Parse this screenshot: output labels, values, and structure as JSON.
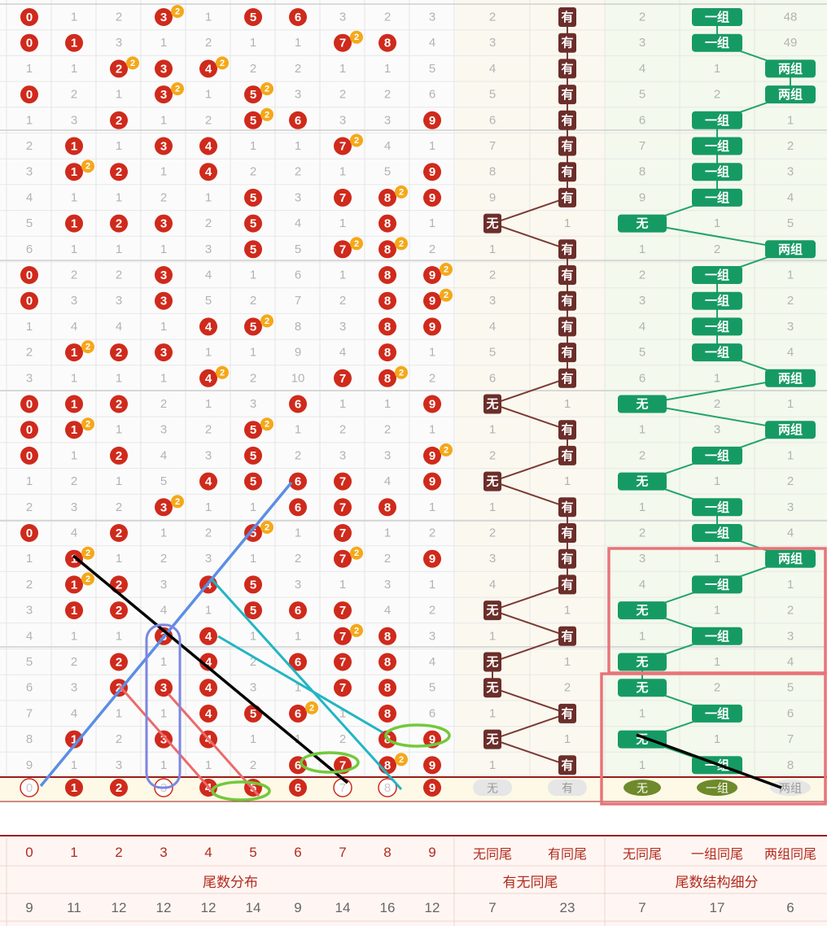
{
  "chart_data": {
    "type": "table",
    "sections": {
      "tail_distribution": "尾数分布",
      "same_tail": "有无同尾",
      "tail_structure": "尾数结构细分"
    },
    "columns": [
      "0",
      "1",
      "2",
      "3",
      "4",
      "5",
      "6",
      "7",
      "8",
      "9",
      "无同尾",
      "有同尾",
      "无同尾",
      "一组同尾",
      "两组同尾"
    ],
    "totals": [
      "9",
      "11",
      "12",
      "12",
      "12",
      "14",
      "9",
      "14",
      "16",
      "12",
      "7",
      "23",
      "7",
      "17",
      "6"
    ],
    "labels": {
      "has": "有",
      "none": "无",
      "one": "一组",
      "two": "两组"
    },
    "digit_rows": [
      [
        "h",
        "1",
        "2",
        "h2",
        "1",
        "h",
        "h",
        "3",
        "2",
        "3"
      ],
      [
        "h",
        "h",
        "3",
        "1",
        "2",
        "1",
        "1",
        "h2",
        "h",
        "4"
      ],
      [
        "1",
        "1",
        "h2",
        "h",
        "h2",
        "2",
        "2",
        "1",
        "1",
        "5"
      ],
      [
        "h",
        "2",
        "1",
        "h2",
        "1",
        "h2",
        "3",
        "2",
        "2",
        "6"
      ],
      [
        "1",
        "3",
        "h",
        "1",
        "2",
        "h2",
        "h",
        "3",
        "3",
        "h"
      ],
      [
        "2",
        "h",
        "1",
        "h",
        "h",
        "1",
        "1",
        "h2",
        "4",
        "1"
      ],
      [
        "3",
        "h2",
        "h",
        "1",
        "h",
        "2",
        "2",
        "1",
        "5",
        "h"
      ],
      [
        "4",
        "1",
        "1",
        "2",
        "1",
        "h",
        "3",
        "h",
        "h2",
        "h"
      ],
      [
        "5",
        "h",
        "h",
        "h",
        "2",
        "h",
        "4",
        "1",
        "h",
        "1"
      ],
      [
        "6",
        "1",
        "1",
        "1",
        "3",
        "h",
        "5",
        "h2",
        "h2",
        "2"
      ],
      [
        "h",
        "2",
        "2",
        "h",
        "4",
        "1",
        "6",
        "1",
        "h",
        "h2"
      ],
      [
        "h",
        "3",
        "3",
        "h",
        "5",
        "2",
        "7",
        "2",
        "h",
        "h2"
      ],
      [
        "1",
        "4",
        "4",
        "1",
        "h",
        "h2",
        "8",
        "3",
        "h",
        "h"
      ],
      [
        "2",
        "h2",
        "h",
        "h",
        "1",
        "1",
        "9",
        "4",
        "h",
        "1"
      ],
      [
        "3",
        "1",
        "1",
        "1",
        "h2",
        "2",
        "10",
        "h",
        "h2",
        "2"
      ],
      [
        "h",
        "h",
        "h",
        "2",
        "1",
        "3",
        "h",
        "1",
        "1",
        "h"
      ],
      [
        "h",
        "h2",
        "1",
        "3",
        "2",
        "h2",
        "1",
        "2",
        "2",
        "1"
      ],
      [
        "h",
        "1",
        "h",
        "4",
        "3",
        "h",
        "2",
        "3",
        "3",
        "h2"
      ],
      [
        "1",
        "2",
        "1",
        "5",
        "h",
        "h",
        "h",
        "h",
        "4",
        "h"
      ],
      [
        "2",
        "3",
        "2",
        "h2",
        "1",
        "1",
        "h",
        "h",
        "h",
        "1"
      ],
      [
        "h",
        "4",
        "h",
        "1",
        "2",
        "h2",
        "1",
        "h",
        "1",
        "2"
      ],
      [
        "1",
        "h2",
        "1",
        "2",
        "3",
        "1",
        "2",
        "h2",
        "2",
        "h"
      ],
      [
        "2",
        "h2",
        "h",
        "3",
        "h",
        "h",
        "3",
        "1",
        "3",
        "1"
      ],
      [
        "3",
        "h",
        "h",
        "4",
        "1",
        "h",
        "h",
        "h",
        "4",
        "2"
      ],
      [
        "4",
        "1",
        "1",
        "h",
        "h",
        "1",
        "1",
        "h2",
        "h",
        "3"
      ],
      [
        "5",
        "2",
        "h",
        "1",
        "h",
        "2",
        "h",
        "h",
        "h",
        "4"
      ],
      [
        "6",
        "3",
        "h",
        "h",
        "h",
        "3",
        "1",
        "h",
        "h",
        "5"
      ],
      [
        "7",
        "4",
        "1",
        "1",
        "h",
        "h",
        "h2",
        "1",
        "h",
        "6"
      ],
      [
        "8",
        "h",
        "2",
        "h",
        "h",
        "1",
        "1",
        "2",
        "h",
        "h"
      ],
      [
        "9",
        "1",
        "3",
        "1",
        "1",
        "2",
        "h",
        "h",
        "h2",
        "h"
      ]
    ],
    "same_tail_rows": [
      [
        "2",
        "h"
      ],
      [
        "3",
        "h"
      ],
      [
        "4",
        "h"
      ],
      [
        "5",
        "h"
      ],
      [
        "6",
        "h"
      ],
      [
        "7",
        "h"
      ],
      [
        "8",
        "h"
      ],
      [
        "9",
        "h"
      ],
      [
        "h",
        "1"
      ],
      [
        "1",
        "h"
      ],
      [
        "2",
        "h"
      ],
      [
        "3",
        "h"
      ],
      [
        "4",
        "h"
      ],
      [
        "5",
        "h"
      ],
      [
        "6",
        "h"
      ],
      [
        "h",
        "1"
      ],
      [
        "1",
        "h"
      ],
      [
        "2",
        "h"
      ],
      [
        "h",
        "1"
      ],
      [
        "1",
        "h"
      ],
      [
        "2",
        "h"
      ],
      [
        "3",
        "h"
      ],
      [
        "4",
        "h"
      ],
      [
        "h",
        "1"
      ],
      [
        "1",
        "h"
      ],
      [
        "h",
        "1"
      ],
      [
        "h",
        "2"
      ],
      [
        "1",
        "h"
      ],
      [
        "h",
        "1"
      ],
      [
        "1",
        "h"
      ]
    ],
    "structure_rows": [
      [
        "2",
        "h",
        "48"
      ],
      [
        "3",
        "h",
        "49"
      ],
      [
        "4",
        "1",
        "h"
      ],
      [
        "5",
        "2",
        "h"
      ],
      [
        "6",
        "h",
        "1"
      ],
      [
        "7",
        "h",
        "2"
      ],
      [
        "8",
        "h",
        "3"
      ],
      [
        "9",
        "h",
        "4"
      ],
      [
        "h",
        "1",
        "5"
      ],
      [
        "1",
        "2",
        "h"
      ],
      [
        "2",
        "h",
        "1"
      ],
      [
        "3",
        "h",
        "2"
      ],
      [
        "4",
        "h",
        "3"
      ],
      [
        "5",
        "h",
        "4"
      ],
      [
        "6",
        "1",
        "h"
      ],
      [
        "h",
        "2",
        "1"
      ],
      [
        "1",
        "3",
        "h"
      ],
      [
        "2",
        "h",
        "1"
      ],
      [
        "h",
        "1",
        "2"
      ],
      [
        "1",
        "h",
        "3"
      ],
      [
        "2",
        "h",
        "4"
      ],
      [
        "3",
        "1",
        "h"
      ],
      [
        "4",
        "h",
        "1"
      ],
      [
        "h",
        "1",
        "2"
      ],
      [
        "1",
        "h",
        "3"
      ],
      [
        "h",
        "1",
        "4"
      ],
      [
        "h",
        "2",
        "5"
      ],
      [
        "1",
        "h",
        "6"
      ],
      [
        "h",
        "1",
        "7"
      ],
      [
        "1",
        "h",
        "8"
      ]
    ],
    "forecast_row": {
      "digits": [
        "0",
        "1",
        "2",
        "3",
        "4",
        "5",
        "6",
        "7",
        "8",
        "9"
      ],
      "style": [
        "o",
        "s",
        "s",
        "o",
        "s",
        "s",
        "s",
        "o",
        "o",
        "s"
      ],
      "same_tail": [
        "无",
        "有"
      ],
      "structure": [
        "无",
        "一组",
        "两组"
      ]
    },
    "colors": {
      "ball": "#cf2a1c",
      "badge": "#f4a81a",
      "has_box": "#6b2e2a",
      "group_box": "#169a63",
      "line_brown": "#7a3b33",
      "line_green": "#22a36b",
      "mark_blue": "#5b8ee6",
      "mark_black": "#000000",
      "mark_teal": "#22b5c4",
      "mark_pink": "#ec6a6a",
      "mark_ellipse_green": "#73c93b",
      "mark_box_red": "#e87478",
      "mark_rounded_blue": "#7d86e0"
    }
  }
}
